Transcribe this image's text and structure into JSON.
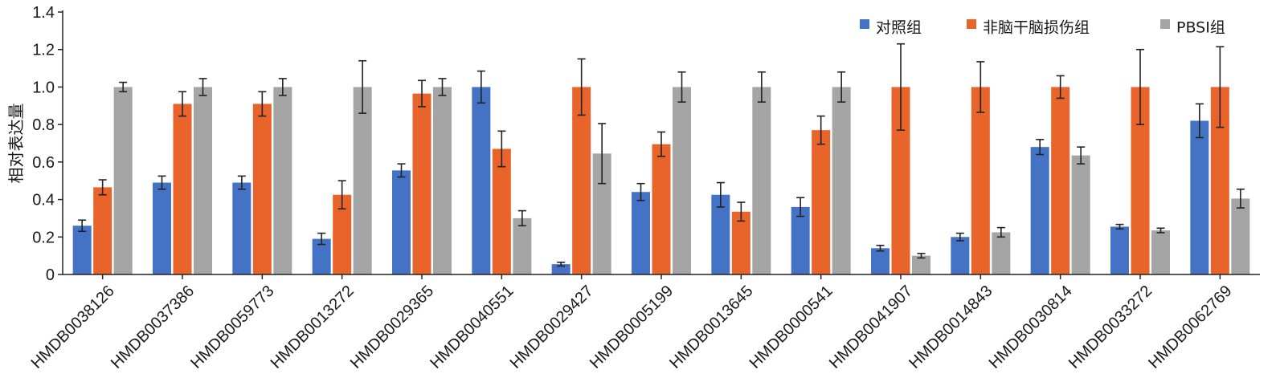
{
  "chart_data": {
    "type": "bar",
    "title": "",
    "xlabel": "",
    "ylabel": "相对表达量",
    "ylim": [
      0,
      1.4
    ],
    "yticks": [
      "0",
      "0.2",
      "0.4",
      "0.6",
      "0.8",
      "1.0",
      "1.2",
      "1.4"
    ],
    "grid": false,
    "legend_position": "top-right",
    "categories": [
      "HMDB0038126",
      "HMDB0037386",
      "HMDB0059773",
      "HMDB0013272",
      "HMDB0029365",
      "HMDB0040551",
      "HMDB0029427",
      "HMDB0005199",
      "HMDB0013645",
      "HMDB0000541",
      "HMDB0041907",
      "HMDB0014843",
      "HMDB0030814",
      "HMDB0033272",
      "HMDB0062769"
    ],
    "series": [
      {
        "name": "对照组",
        "color": "#4472C4",
        "values": [
          0.26,
          0.49,
          0.49,
          0.19,
          0.555,
          1.0,
          0.055,
          0.44,
          0.425,
          0.36,
          0.14,
          0.2,
          0.68,
          0.255,
          0.82
        ],
        "errors": [
          0.03,
          0.035,
          0.035,
          0.03,
          0.035,
          0.085,
          0.01,
          0.045,
          0.065,
          0.05,
          0.015,
          0.02,
          0.04,
          0.012,
          0.09
        ]
      },
      {
        "name": "非脑干脑损伤组",
        "color": "#E8642B",
        "values": [
          0.465,
          0.91,
          0.91,
          0.425,
          0.965,
          0.67,
          1.0,
          0.695,
          0.335,
          0.77,
          1.0,
          1.0,
          1.0,
          1.0,
          1.0
        ],
        "errors": [
          0.04,
          0.065,
          0.065,
          0.075,
          0.07,
          0.095,
          0.15,
          0.065,
          0.05,
          0.075,
          0.23,
          0.135,
          0.06,
          0.2,
          0.215
        ]
      },
      {
        "name": "PBSI组",
        "color": "#A5A5A5",
        "values": [
          1.0,
          1.0,
          1.0,
          1.0,
          1.0,
          0.3,
          0.645,
          1.0,
          1.0,
          1.0,
          0.1,
          0.225,
          0.635,
          0.235,
          0.405
        ],
        "errors": [
          0.025,
          0.045,
          0.045,
          0.14,
          0.045,
          0.04,
          0.16,
          0.08,
          0.08,
          0.08,
          0.012,
          0.025,
          0.045,
          0.012,
          0.05
        ]
      }
    ]
  }
}
